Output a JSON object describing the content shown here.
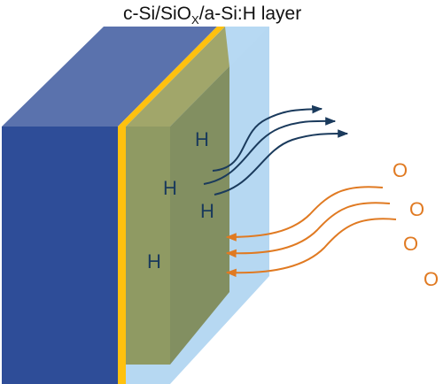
{
  "title": {
    "main": "c-Si/SiO",
    "subscript": "X",
    "suffix": "/a-Si:H layer"
  },
  "atoms": {
    "hydrogen": [
      "H",
      "H",
      "H",
      "H"
    ],
    "oxygen": [
      "O",
      "O",
      "O",
      "O"
    ]
  },
  "colors": {
    "substrate_front": "#2e4d98",
    "substrate_top": "#5a72ad",
    "oxide_layer": "#ffc10e",
    "asi_layer": "#8f9a63",
    "outer_layer": "#a9d1f0",
    "h_arrow": "#1a3a5c",
    "o_arrow": "#e07a22"
  }
}
